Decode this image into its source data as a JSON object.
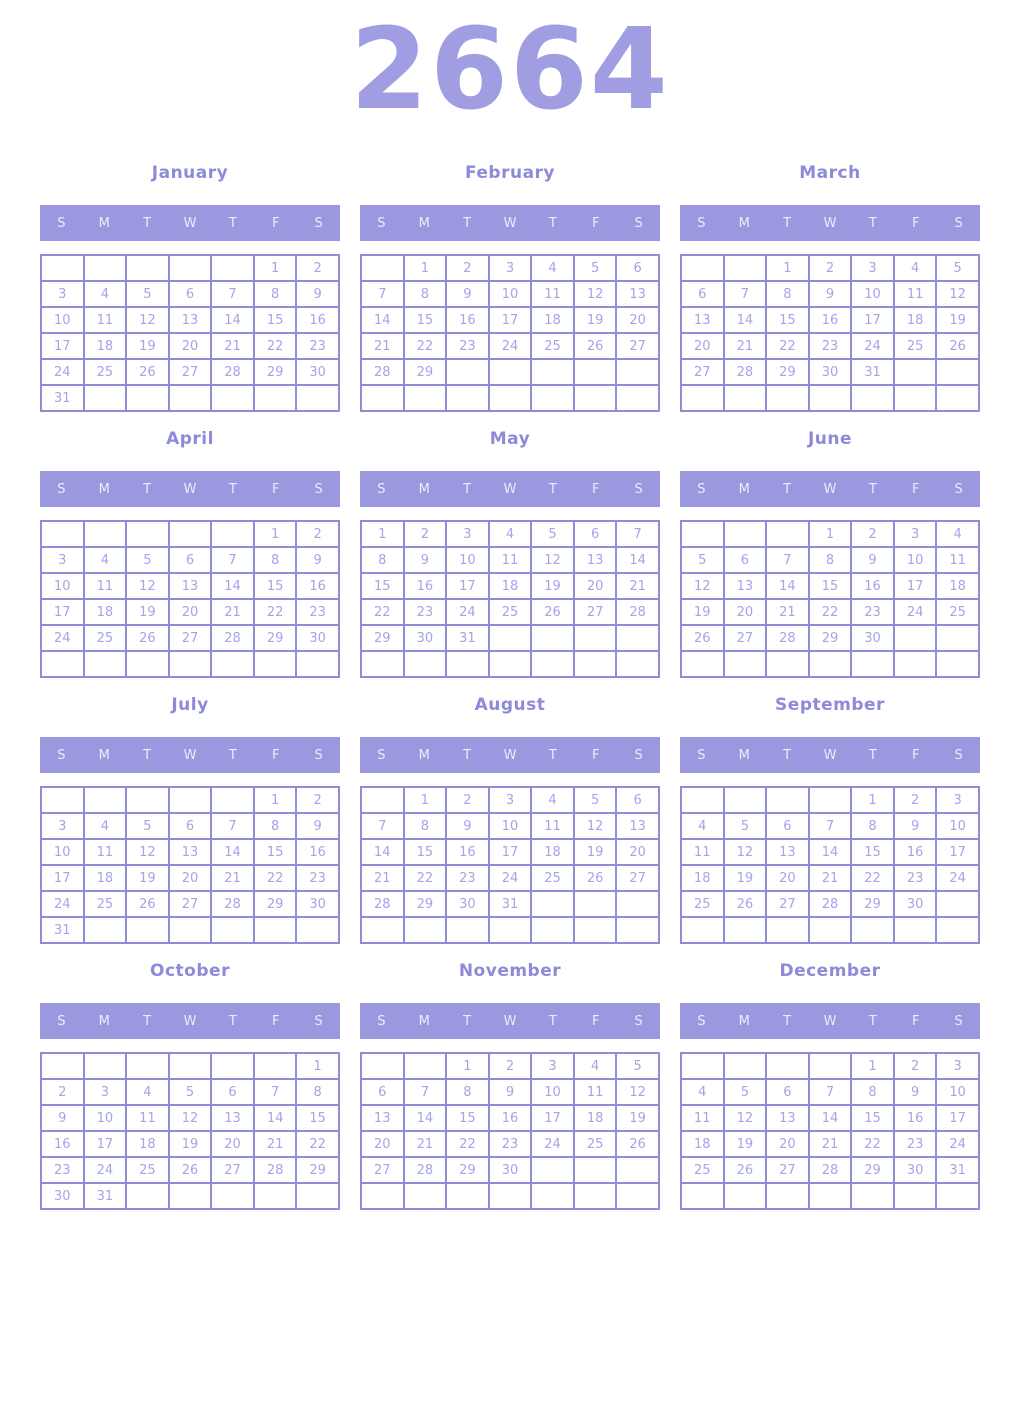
{
  "year": "2664",
  "weekday_labels": [
    "S",
    "M",
    "T",
    "W",
    "T",
    "F",
    "S"
  ],
  "colors": {
    "year_text": "#a09de3",
    "month_title": "#8d8ad9",
    "header_bg": "#9b98e0",
    "header_text": "#edecf9",
    "cell_border": "#908dd8",
    "day_text": "#a6a3e6",
    "page_bg": "#ffffff"
  },
  "months": [
    {
      "name": "January",
      "weeks": [
        [
          "",
          "",
          "",
          "",
          "",
          "1",
          "2"
        ],
        [
          "3",
          "4",
          "5",
          "6",
          "7",
          "8",
          "9"
        ],
        [
          "10",
          "11",
          "12",
          "13",
          "14",
          "15",
          "16"
        ],
        [
          "17",
          "18",
          "19",
          "20",
          "21",
          "22",
          "23"
        ],
        [
          "24",
          "25",
          "26",
          "27",
          "28",
          "29",
          "30"
        ],
        [
          "31",
          "",
          "",
          "",
          "",
          "",
          ""
        ]
      ]
    },
    {
      "name": "February",
      "weeks": [
        [
          "",
          "1",
          "2",
          "3",
          "4",
          "5",
          "6"
        ],
        [
          "7",
          "8",
          "9",
          "10",
          "11",
          "12",
          "13"
        ],
        [
          "14",
          "15",
          "16",
          "17",
          "18",
          "19",
          "20"
        ],
        [
          "21",
          "22",
          "23",
          "24",
          "25",
          "26",
          "27"
        ],
        [
          "28",
          "29",
          "",
          "",
          "",
          "",
          ""
        ],
        [
          "",
          "",
          "",
          "",
          "",
          "",
          ""
        ]
      ]
    },
    {
      "name": "March",
      "weeks": [
        [
          "",
          "",
          "1",
          "2",
          "3",
          "4",
          "5"
        ],
        [
          "6",
          "7",
          "8",
          "9",
          "10",
          "11",
          "12"
        ],
        [
          "13",
          "14",
          "15",
          "16",
          "17",
          "18",
          "19"
        ],
        [
          "20",
          "21",
          "22",
          "23",
          "24",
          "25",
          "26"
        ],
        [
          "27",
          "28",
          "29",
          "30",
          "31",
          "",
          ""
        ],
        [
          "",
          "",
          "",
          "",
          "",
          "",
          ""
        ]
      ]
    },
    {
      "name": "April",
      "weeks": [
        [
          "",
          "",
          "",
          "",
          "",
          "1",
          "2"
        ],
        [
          "3",
          "4",
          "5",
          "6",
          "7",
          "8",
          "9"
        ],
        [
          "10",
          "11",
          "12",
          "13",
          "14",
          "15",
          "16"
        ],
        [
          "17",
          "18",
          "19",
          "20",
          "21",
          "22",
          "23"
        ],
        [
          "24",
          "25",
          "26",
          "27",
          "28",
          "29",
          "30"
        ],
        [
          "",
          "",
          "",
          "",
          "",
          "",
          ""
        ]
      ]
    },
    {
      "name": "May",
      "weeks": [
        [
          "1",
          "2",
          "3",
          "4",
          "5",
          "6",
          "7"
        ],
        [
          "8",
          "9",
          "10",
          "11",
          "12",
          "13",
          "14"
        ],
        [
          "15",
          "16",
          "17",
          "18",
          "19",
          "20",
          "21"
        ],
        [
          "22",
          "23",
          "24",
          "25",
          "26",
          "27",
          "28"
        ],
        [
          "29",
          "30",
          "31",
          "",
          "",
          "",
          ""
        ],
        [
          "",
          "",
          "",
          "",
          "",
          "",
          ""
        ]
      ]
    },
    {
      "name": "June",
      "weeks": [
        [
          "",
          "",
          "",
          "1",
          "2",
          "3",
          "4"
        ],
        [
          "5",
          "6",
          "7",
          "8",
          "9",
          "10",
          "11"
        ],
        [
          "12",
          "13",
          "14",
          "15",
          "16",
          "17",
          "18"
        ],
        [
          "19",
          "20",
          "21",
          "22",
          "23",
          "24",
          "25"
        ],
        [
          "26",
          "27",
          "28",
          "29",
          "30",
          "",
          ""
        ],
        [
          "",
          "",
          "",
          "",
          "",
          "",
          ""
        ]
      ]
    },
    {
      "name": "July",
      "weeks": [
        [
          "",
          "",
          "",
          "",
          "",
          "1",
          "2"
        ],
        [
          "3",
          "4",
          "5",
          "6",
          "7",
          "8",
          "9"
        ],
        [
          "10",
          "11",
          "12",
          "13",
          "14",
          "15",
          "16"
        ],
        [
          "17",
          "18",
          "19",
          "20",
          "21",
          "22",
          "23"
        ],
        [
          "24",
          "25",
          "26",
          "27",
          "28",
          "29",
          "30"
        ],
        [
          "31",
          "",
          "",
          "",
          "",
          "",
          ""
        ]
      ]
    },
    {
      "name": "August",
      "weeks": [
        [
          "",
          "1",
          "2",
          "3",
          "4",
          "5",
          "6"
        ],
        [
          "7",
          "8",
          "9",
          "10",
          "11",
          "12",
          "13"
        ],
        [
          "14",
          "15",
          "16",
          "17",
          "18",
          "19",
          "20"
        ],
        [
          "21",
          "22",
          "23",
          "24",
          "25",
          "26",
          "27"
        ],
        [
          "28",
          "29",
          "30",
          "31",
          "",
          "",
          ""
        ],
        [
          "",
          "",
          "",
          "",
          "",
          "",
          ""
        ]
      ]
    },
    {
      "name": "September",
      "weeks": [
        [
          "",
          "",
          "",
          "",
          "1",
          "2",
          "3"
        ],
        [
          "4",
          "5",
          "6",
          "7",
          "8",
          "9",
          "10"
        ],
        [
          "11",
          "12",
          "13",
          "14",
          "15",
          "16",
          "17"
        ],
        [
          "18",
          "19",
          "20",
          "21",
          "22",
          "23",
          "24"
        ],
        [
          "25",
          "26",
          "27",
          "28",
          "29",
          "30",
          ""
        ],
        [
          "",
          "",
          "",
          "",
          "",
          "",
          ""
        ]
      ]
    },
    {
      "name": "October",
      "weeks": [
        [
          "",
          "",
          "",
          "",
          "",
          "",
          "1"
        ],
        [
          "2",
          "3",
          "4",
          "5",
          "6",
          "7",
          "8"
        ],
        [
          "9",
          "10",
          "11",
          "12",
          "13",
          "14",
          "15"
        ],
        [
          "16",
          "17",
          "18",
          "19",
          "20",
          "21",
          "22"
        ],
        [
          "23",
          "24",
          "25",
          "26",
          "27",
          "28",
          "29"
        ],
        [
          "30",
          "31",
          "",
          "",
          "",
          "",
          ""
        ]
      ]
    },
    {
      "name": "November",
      "weeks": [
        [
          "",
          "",
          "1",
          "2",
          "3",
          "4",
          "5"
        ],
        [
          "6",
          "7",
          "8",
          "9",
          "10",
          "11",
          "12"
        ],
        [
          "13",
          "14",
          "15",
          "16",
          "17",
          "18",
          "19"
        ],
        [
          "20",
          "21",
          "22",
          "23",
          "24",
          "25",
          "26"
        ],
        [
          "27",
          "28",
          "29",
          "30",
          "",
          "",
          ""
        ],
        [
          "",
          "",
          "",
          "",
          "",
          "",
          ""
        ]
      ]
    },
    {
      "name": "December",
      "weeks": [
        [
          "",
          "",
          "",
          "",
          "1",
          "2",
          "3"
        ],
        [
          "4",
          "5",
          "6",
          "7",
          "8",
          "9",
          "10"
        ],
        [
          "11",
          "12",
          "13",
          "14",
          "15",
          "16",
          "17"
        ],
        [
          "18",
          "19",
          "20",
          "21",
          "22",
          "23",
          "24"
        ],
        [
          "25",
          "26",
          "27",
          "28",
          "29",
          "30",
          "31"
        ],
        [
          "",
          "",
          "",
          "",
          "",
          "",
          ""
        ]
      ]
    }
  ]
}
